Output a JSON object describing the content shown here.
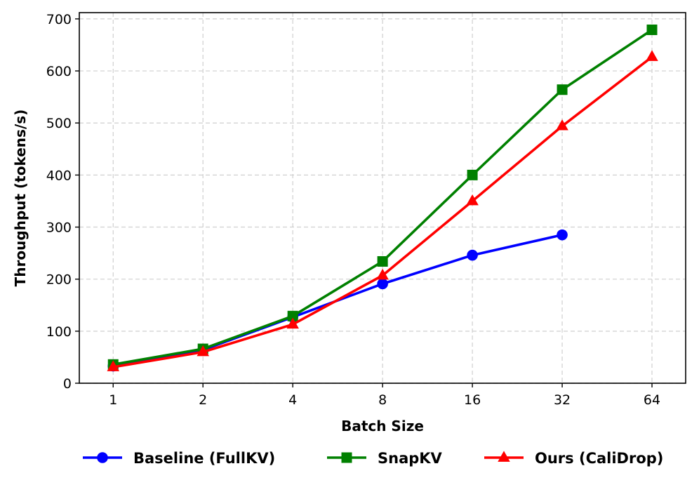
{
  "chart_data": {
    "type": "line",
    "title": "",
    "xlabel": "Batch Size",
    "ylabel": "Throughput (tokens/s)",
    "x_scale": "log2",
    "x_ticks": [
      1,
      2,
      4,
      8,
      16,
      32,
      64
    ],
    "x_tick_labels": [
      "1",
      "2",
      "4",
      "8",
      "16",
      "32",
      "64"
    ],
    "xlim": [
      0.77,
      83
    ],
    "ylim": [
      0,
      712
    ],
    "y_ticks": [
      0,
      100,
      200,
      300,
      400,
      500,
      600,
      700
    ],
    "y_tick_labels": [
      "0",
      "100",
      "200",
      "300",
      "400",
      "500",
      "600",
      "700"
    ],
    "grid": true,
    "legend_position": "bottom-outside",
    "series": [
      {
        "name": "Baseline (FullKV)",
        "color": "#0000ff",
        "marker": "circle",
        "x": [
          1,
          2,
          4,
          8,
          16,
          32
        ],
        "values": [
          33,
          64,
          127,
          191,
          246,
          285
        ]
      },
      {
        "name": "SnapKV",
        "color": "#008000",
        "marker": "square",
        "x": [
          1,
          2,
          4,
          8,
          16,
          32,
          64
        ],
        "values": [
          36,
          66,
          129,
          234,
          400,
          564,
          679
        ]
      },
      {
        "name": "Ours (CaliDrop)",
        "color": "#ff0000",
        "marker": "triangle",
        "x": [
          1,
          2,
          4,
          8,
          16,
          32,
          64
        ],
        "values": [
          31,
          60,
          113,
          207,
          350,
          494,
          627
        ]
      }
    ]
  }
}
